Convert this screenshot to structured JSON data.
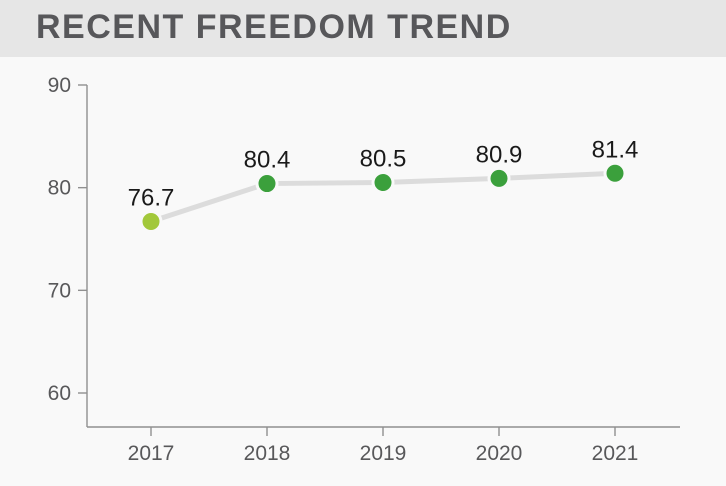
{
  "header": {
    "title": "RECENT FREEDOM TREND"
  },
  "colors": {
    "header_bg": "#e6e6e6",
    "page_bg": "#f9f9f9",
    "title_text": "#57575a",
    "axis": "#909090",
    "tick_label": "#58585a",
    "data_label": "#1a1a1a",
    "line": "#dcdcdc",
    "point_default": "#3ba03c",
    "point_first": "#a2c83a"
  },
  "chart_data": {
    "type": "line",
    "title": "RECENT FREEDOM TREND",
    "xlabel": "",
    "ylabel": "",
    "categories": [
      "2017",
      "2018",
      "2019",
      "2020",
      "2021"
    ],
    "values": [
      76.7,
      80.4,
      80.5,
      80.9,
      81.4
    ],
    "data_labels": [
      "76.7",
      "80.4",
      "80.5",
      "80.9",
      "81.4"
    ],
    "point_colors": [
      "#a2c83a",
      "#3ba03c",
      "#3ba03c",
      "#3ba03c",
      "#3ba03c"
    ],
    "yticks": [
      60,
      70,
      80,
      90
    ],
    "ylim": [
      56.7,
      90
    ],
    "grid": false,
    "legend": null
  }
}
